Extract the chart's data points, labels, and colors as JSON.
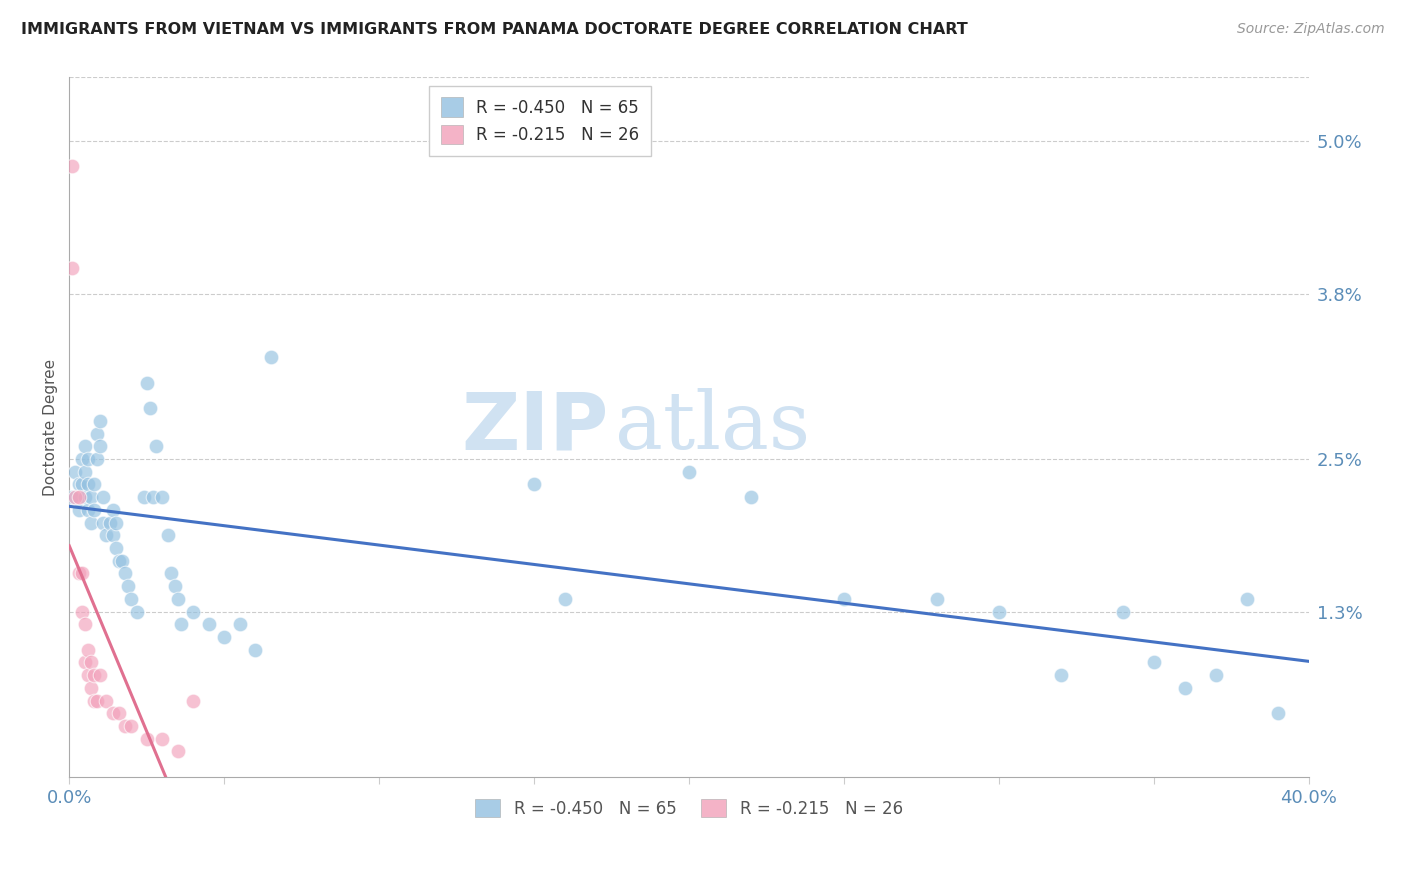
{
  "title": "IMMIGRANTS FROM VIETNAM VS IMMIGRANTS FROM PANAMA DOCTORATE DEGREE CORRELATION CHART",
  "source": "Source: ZipAtlas.com",
  "ylabel": "Doctorate Degree",
  "ytick_labels": [
    "5.0%",
    "3.8%",
    "2.5%",
    "1.3%"
  ],
  "ytick_values": [
    0.05,
    0.038,
    0.025,
    0.013
  ],
  "xlim": [
    0.0,
    0.4
  ],
  "ylim": [
    0.0,
    0.055
  ],
  "vietnam_color": "#92C0E0",
  "panama_color": "#F2A0BA",
  "vietnam_line_color": "#4472C4",
  "panama_line_color": "#E07090",
  "background_color": "#ffffff",
  "watermark_zip": "ZIP",
  "watermark_atlas": "atlas",
  "legend1_label": "R = -0.450   N = 65",
  "legend2_label": "R = -0.215   N = 26",
  "vietnam_x": [
    0.001,
    0.002,
    0.003,
    0.003,
    0.004,
    0.004,
    0.005,
    0.005,
    0.005,
    0.006,
    0.006,
    0.006,
    0.007,
    0.007,
    0.008,
    0.008,
    0.009,
    0.009,
    0.01,
    0.01,
    0.011,
    0.011,
    0.012,
    0.013,
    0.014,
    0.014,
    0.015,
    0.015,
    0.016,
    0.017,
    0.018,
    0.019,
    0.02,
    0.022,
    0.024,
    0.025,
    0.026,
    0.027,
    0.028,
    0.03,
    0.032,
    0.033,
    0.034,
    0.035,
    0.036,
    0.04,
    0.045,
    0.05,
    0.055,
    0.06,
    0.065,
    0.15,
    0.16,
    0.2,
    0.22,
    0.25,
    0.28,
    0.3,
    0.32,
    0.34,
    0.35,
    0.36,
    0.37,
    0.38,
    0.39
  ],
  "vietnam_y": [
    0.022,
    0.024,
    0.023,
    0.021,
    0.025,
    0.023,
    0.026,
    0.024,
    0.022,
    0.025,
    0.023,
    0.021,
    0.022,
    0.02,
    0.023,
    0.021,
    0.027,
    0.025,
    0.028,
    0.026,
    0.022,
    0.02,
    0.019,
    0.02,
    0.021,
    0.019,
    0.02,
    0.018,
    0.017,
    0.017,
    0.016,
    0.015,
    0.014,
    0.013,
    0.022,
    0.031,
    0.029,
    0.022,
    0.026,
    0.022,
    0.019,
    0.016,
    0.015,
    0.014,
    0.012,
    0.013,
    0.012,
    0.011,
    0.012,
    0.01,
    0.033,
    0.023,
    0.014,
    0.024,
    0.022,
    0.014,
    0.014,
    0.013,
    0.008,
    0.013,
    0.009,
    0.007,
    0.008,
    0.014,
    0.005
  ],
  "panama_x": [
    0.001,
    0.001,
    0.002,
    0.003,
    0.003,
    0.004,
    0.004,
    0.005,
    0.005,
    0.006,
    0.006,
    0.007,
    0.007,
    0.008,
    0.008,
    0.009,
    0.01,
    0.012,
    0.014,
    0.016,
    0.018,
    0.02,
    0.025,
    0.03,
    0.035,
    0.04
  ],
  "panama_y": [
    0.048,
    0.04,
    0.022,
    0.022,
    0.016,
    0.016,
    0.013,
    0.012,
    0.009,
    0.01,
    0.008,
    0.009,
    0.007,
    0.008,
    0.006,
    0.006,
    0.008,
    0.006,
    0.005,
    0.005,
    0.004,
    0.004,
    0.003,
    0.003,
    0.002,
    0.006
  ]
}
